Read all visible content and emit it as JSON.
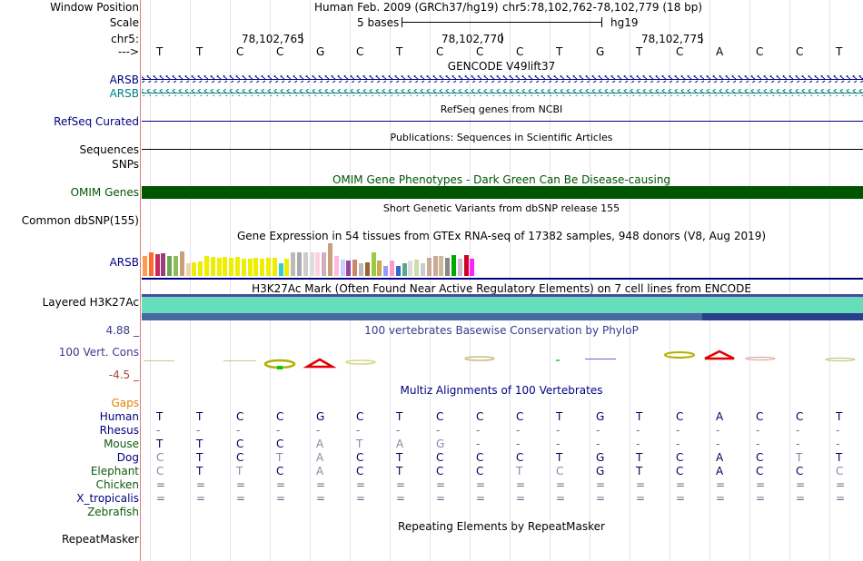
{
  "header": {
    "window_position_label": "Window Position",
    "assembly": "Human Feb. 2009 (GRCh37/hg19)",
    "position": "chr5:78,102,762-78,102,779 (18 bp)",
    "scale_label": "Scale",
    "scale_text": "5 bases",
    "scale_db": "hg19",
    "chrom_label": "chr5:",
    "strand_label": "--->",
    "coord_ticks": [
      "78,102,765",
      "78,102,770",
      "78,102,775"
    ]
  },
  "sequence": [
    "T",
    "T",
    "C",
    "C",
    "G",
    "C",
    "T",
    "C",
    "C",
    "C",
    "T",
    "G",
    "T",
    "C",
    "A",
    "C",
    "C",
    "T"
  ],
  "tracks": {
    "gencode": {
      "title": "GENCODE V49lift37",
      "rows": [
        "ARSB",
        "ARSB"
      ]
    },
    "refseq": {
      "title": "RefSeq genes from NCBI",
      "label": "RefSeq Curated"
    },
    "publications": {
      "title": "Publications: Sequences in Scientific Articles",
      "labels": [
        "Sequences",
        "SNPs"
      ]
    },
    "omim": {
      "title": "OMIM Gene Phenotypes - Dark Green Can Be Disease-causing",
      "label": "OMIM Genes"
    },
    "dbsnp": {
      "title": "Short Genetic Variants from dbSNP release 155",
      "label": "Common dbSNP(155)"
    },
    "gtex": {
      "title": "Gene Expression in 54 tissues from GTEx RNA-seq of 17382 samples, 948 donors (V8, Aug 2019)",
      "label": "ARSB",
      "bars": [
        {
          "v": 0.62,
          "c": "#ff9a4a"
        },
        {
          "v": 0.72,
          "c": "#ff6a2a"
        },
        {
          "v": 0.66,
          "c": "#c42a5a"
        },
        {
          "v": 0.7,
          "c": "#a03a7a"
        },
        {
          "v": 0.6,
          "c": "#6aa84f"
        },
        {
          "v": 0.6,
          "c": "#8fbc5a"
        },
        {
          "v": 0.75,
          "c": "#c8a07a"
        },
        {
          "v": 0.4,
          "c": "#eed4a8"
        },
        {
          "v": 0.42,
          "c": "#eeee00"
        },
        {
          "v": 0.44,
          "c": "#eeee00"
        },
        {
          "v": 0.6,
          "c": "#eeee00"
        },
        {
          "v": 0.58,
          "c": "#eeee00"
        },
        {
          "v": 0.55,
          "c": "#eeee00"
        },
        {
          "v": 0.58,
          "c": "#eeee00"
        },
        {
          "v": 0.55,
          "c": "#eeee00"
        },
        {
          "v": 0.58,
          "c": "#eeee00"
        },
        {
          "v": 0.52,
          "c": "#eeee00"
        },
        {
          "v": 0.52,
          "c": "#eeee00"
        },
        {
          "v": 0.55,
          "c": "#eeee00"
        },
        {
          "v": 0.52,
          "c": "#eeee00"
        },
        {
          "v": 0.55,
          "c": "#eeee00"
        },
        {
          "v": 0.55,
          "c": "#eeee00"
        },
        {
          "v": 0.4,
          "c": "#33cccc"
        },
        {
          "v": 0.52,
          "c": "#eeee00"
        },
        {
          "v": 0.72,
          "c": "#bbbbbb"
        },
        {
          "v": 0.72,
          "c": "#aaaaaa"
        },
        {
          "v": 0.72,
          "c": "#cccccc"
        },
        {
          "v": 0.72,
          "c": "#dddddd"
        },
        {
          "v": 0.72,
          "c": "#ffd0e0"
        },
        {
          "v": 0.72,
          "c": "#d0b0c0"
        },
        {
          "v": 1.0,
          "c": "#c8a07a"
        },
        {
          "v": 0.62,
          "c": "#ffbbdd"
        },
        {
          "v": 0.5,
          "c": "#ccccff"
        },
        {
          "v": 0.48,
          "c": "#994499"
        },
        {
          "v": 0.5,
          "c": "#cc8866"
        },
        {
          "v": 0.4,
          "c": "#bbbbbb"
        },
        {
          "v": 0.42,
          "c": "#996633"
        },
        {
          "v": 0.72,
          "c": "#99cc44"
        },
        {
          "v": 0.48,
          "c": "#ccaa44"
        },
        {
          "v": 0.3,
          "c": "#9999ff"
        },
        {
          "v": 0.48,
          "c": "#ff99cc"
        },
        {
          "v": 0.3,
          "c": "#3366cc"
        },
        {
          "v": 0.38,
          "c": "#55aa88"
        },
        {
          "v": 0.48,
          "c": "#dddddd"
        },
        {
          "v": 0.5,
          "c": "#ccddaa"
        },
        {
          "v": 0.38,
          "c": "#cccccc"
        },
        {
          "v": 0.55,
          "c": "#ccaa99"
        },
        {
          "v": 0.6,
          "c": "#ccaa99"
        },
        {
          "v": 0.6,
          "c": "#ccbb99"
        },
        {
          "v": 0.55,
          "c": "#888888"
        },
        {
          "v": 0.65,
          "c": "#00aa00"
        },
        {
          "v": 0.52,
          "c": "#ccbbcc"
        },
        {
          "v": 0.65,
          "c": "#cc0022"
        },
        {
          "v": 0.52,
          "c": "#ff22ff"
        }
      ]
    },
    "h3k27ac": {
      "title": "H3K27Ac Mark (Often Found Near Active Regulatory Elements) on 7 cell lines from ENCODE",
      "label": "Layered H3K27Ac"
    },
    "phylop": {
      "title": "100 vertebrates Basewise Conservation by PhyloP",
      "label": "100 Vert. Cons",
      "ymax": "4.88 _",
      "ymin": "-4.5 _"
    },
    "multiz": {
      "title": "Multiz Alignments of 100 Vertebrates",
      "gaps_label": "Gaps",
      "species": [
        {
          "name": "Human",
          "color": "#000080",
          "bases": [
            "T",
            "T",
            "C",
            "C",
            "G",
            "C",
            "T",
            "C",
            "C",
            "C",
            "T",
            "G",
            "T",
            "C",
            "A",
            "C",
            "C",
            "T"
          ],
          "gray": []
        },
        {
          "name": "Rhesus",
          "color": "#000080",
          "bases": [
            "-",
            "-",
            "-",
            "-",
            "-",
            "-",
            "-",
            "-",
            "-",
            "-",
            "-",
            "-",
            "-",
            "-",
            "-",
            "-",
            "-",
            "-"
          ],
          "gray": []
        },
        {
          "name": "Mouse",
          "color": "#0c5c0c",
          "bases": [
            "T",
            "T",
            "C",
            "C",
            "A",
            "T",
            "A",
            "G",
            "-",
            "-",
            "-",
            "-",
            "-",
            "-",
            "-",
            "-",
            "-",
            "-"
          ],
          "gray": [
            4,
            5,
            6,
            7
          ]
        },
        {
          "name": "Dog",
          "color": "#000080",
          "bases": [
            "C",
            "T",
            "C",
            "T",
            "A",
            "C",
            "T",
            "C",
            "C",
            "C",
            "T",
            "G",
            "T",
            "C",
            "A",
            "C",
            "T",
            "T"
          ],
          "gray": [
            0,
            3,
            4,
            16
          ]
        },
        {
          "name": "Elephant",
          "color": "#0c5c0c",
          "bases": [
            "C",
            "T",
            "T",
            "C",
            "A",
            "C",
            "T",
            "C",
            "C",
            "T",
            "C",
            "G",
            "T",
            "C",
            "A",
            "C",
            "C",
            "C"
          ],
          "gray": [
            0,
            2,
            4,
            9,
            10,
            17
          ]
        },
        {
          "name": "Chicken",
          "color": "#0c5c0c",
          "bases": [
            "=",
            "=",
            "=",
            "=",
            "=",
            "=",
            "=",
            "=",
            "=",
            "=",
            "=",
            "=",
            "=",
            "=",
            "=",
            "=",
            "=",
            "="
          ],
          "gray": []
        },
        {
          "name": "X_tropicalis",
          "color": "#000080",
          "bases": [
            "=",
            "=",
            "=",
            "=",
            "=",
            "=",
            "=",
            "=",
            "=",
            "=",
            "=",
            "=",
            "=",
            "=",
            "=",
            "=",
            "=",
            "="
          ],
          "gray": []
        },
        {
          "name": "Zebrafish",
          "color": "#0c5c0c",
          "bases": [
            "",
            "",
            "",
            "",
            "",
            "",
            "",
            "",
            "",
            "",
            "",
            "",
            "",
            "",
            "",
            "",
            "",
            ""
          ],
          "gray": []
        }
      ]
    },
    "repeatmasker": {
      "title": "Repeating Elements by RepeatMasker",
      "label": "RepeatMasker"
    }
  },
  "colors": {
    "navy": "#000080",
    "teal": "#008080",
    "omim": "#005500",
    "h3k27ac": "#66ddbb",
    "multiz_title": "#000080",
    "phylop_title": "#3a3a8a",
    "gaps": "#e08000"
  }
}
